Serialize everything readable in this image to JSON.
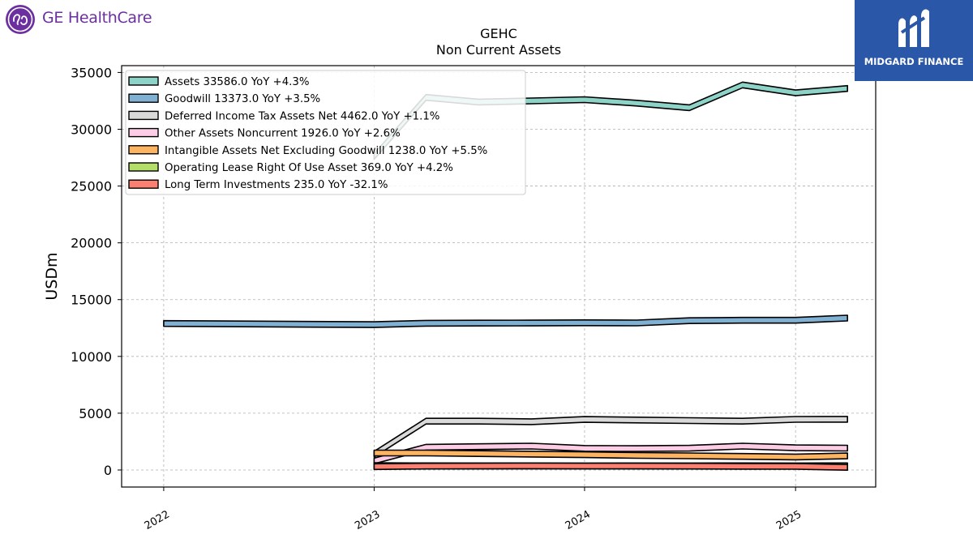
{
  "brand": {
    "company": "GE HealthCare",
    "logo_icon": "ge-monogram-icon"
  },
  "publisher": {
    "name": "MIDGARD FINANCE",
    "logo_icon": "midgard-m-icon"
  },
  "chart_data": {
    "type": "area",
    "title": "GEHC",
    "subtitle": "Non Current  Assets",
    "xlabel": "",
    "ylabel": "USDm",
    "x_ticks": [
      "2022",
      "2023",
      "2024",
      "2025"
    ],
    "y_ticks": [
      0,
      5000,
      10000,
      15000,
      20000,
      25000,
      30000,
      35000
    ],
    "ylim": [
      -1500,
      35600
    ],
    "xlim": [
      "2021-10-20",
      "2025-05-20"
    ],
    "grid": true,
    "legend_position": "top-left",
    "series": [
      {
        "name": "Assets",
        "legend_label": "Assets  33586.0 YoY +4.3%",
        "color": "#8dd3c7",
        "x": [
          "2023-01-01",
          "2023-04-01",
          "2023-07-01",
          "2023-10-01",
          "2024-01-01",
          "2024-04-01",
          "2024-07-01",
          "2024-10-01",
          "2025-01-01",
          "2025-04-01"
        ],
        "y": [
          27600,
          32800,
          32400,
          32500,
          32600,
          32300,
          31900,
          33900,
          33200,
          33586
        ]
      },
      {
        "name": "Goodwill",
        "legend_label": "Goodwill  13373.0 YoY +3.5%",
        "color": "#80b1d3",
        "x": [
          "2022-01-01",
          "2023-01-01",
          "2023-04-01",
          "2023-07-01",
          "2023-10-01",
          "2024-01-01",
          "2024-04-01",
          "2024-07-01",
          "2024-10-01",
          "2025-01-01",
          "2025-04-01"
        ],
        "y": [
          12900,
          12800,
          12920,
          12930,
          12940,
          12960,
          12950,
          13150,
          13180,
          13180,
          13373
        ]
      },
      {
        "name": "Deferred Income Tax Assets Net",
        "legend_label": "Deferred Income Tax Assets Net  4462.0 YoY +1.1%",
        "color": "#d9d9d9",
        "x": [
          "2023-01-01",
          "2023-04-01",
          "2023-07-01",
          "2023-10-01",
          "2024-01-01",
          "2024-04-01",
          "2024-07-01",
          "2024-10-01",
          "2025-01-01",
          "2025-04-01"
        ],
        "y": [
          1400,
          4300,
          4300,
          4250,
          4450,
          4400,
          4350,
          4300,
          4460,
          4462
        ]
      },
      {
        "name": "Other Assets Noncurrent",
        "legend_label": "Other Assets Noncurrent  1926.0 YoY +2.6%",
        "color": "#fccde5",
        "x": [
          "2023-01-01",
          "2023-04-01",
          "2023-07-01",
          "2023-10-01",
          "2024-01-01",
          "2024-04-01",
          "2024-07-01",
          "2024-10-01",
          "2025-01-01",
          "2025-04-01"
        ],
        "y": [
          800,
          2000,
          2050,
          2100,
          1900,
          1880,
          1920,
          2100,
          1950,
          1926
        ]
      },
      {
        "name": "Intangible Assets Net Excluding Goodwill",
        "legend_label": "Intangible Assets Net Excluding Goodwill  1238.0 YoY +5.5%",
        "color": "#fdb462",
        "x": [
          "2023-01-01",
          "2023-04-01",
          "2023-07-01",
          "2023-10-01",
          "2024-01-01",
          "2024-04-01",
          "2024-07-01",
          "2024-10-01",
          "2025-01-01",
          "2025-04-01"
        ],
        "y": [
          1500,
          1500,
          1450,
          1400,
          1350,
          1280,
          1250,
          1200,
          1150,
          1238
        ]
      },
      {
        "name": "Operating Lease Right Of Use Asset",
        "legend_label": "Operating Lease Right Of Use Asset  369.0 YoY +4.2%",
        "color": "#b3de69",
        "x": [
          "2023-01-01",
          "2023-04-01",
          "2023-07-01",
          "2023-10-01",
          "2024-01-01",
          "2024-04-01",
          "2024-07-01",
          "2024-10-01",
          "2025-01-01",
          "2025-04-01"
        ],
        "y": [
          380,
          370,
          365,
          360,
          355,
          360,
          365,
          370,
          360,
          369
        ]
      },
      {
        "name": "Long Term Investments",
        "legend_label": "Long Term Investments  235.0 YoY -32.1%",
        "color": "#fb8072",
        "x": [
          "2023-01-01",
          "2023-04-01",
          "2023-07-01",
          "2023-10-01",
          "2024-01-01",
          "2024-04-01",
          "2024-07-01",
          "2024-10-01",
          "2025-01-01",
          "2025-04-01"
        ],
        "y": [
          300,
          340,
          350,
          360,
          345,
          350,
          340,
          330,
          320,
          235
        ]
      }
    ]
  }
}
